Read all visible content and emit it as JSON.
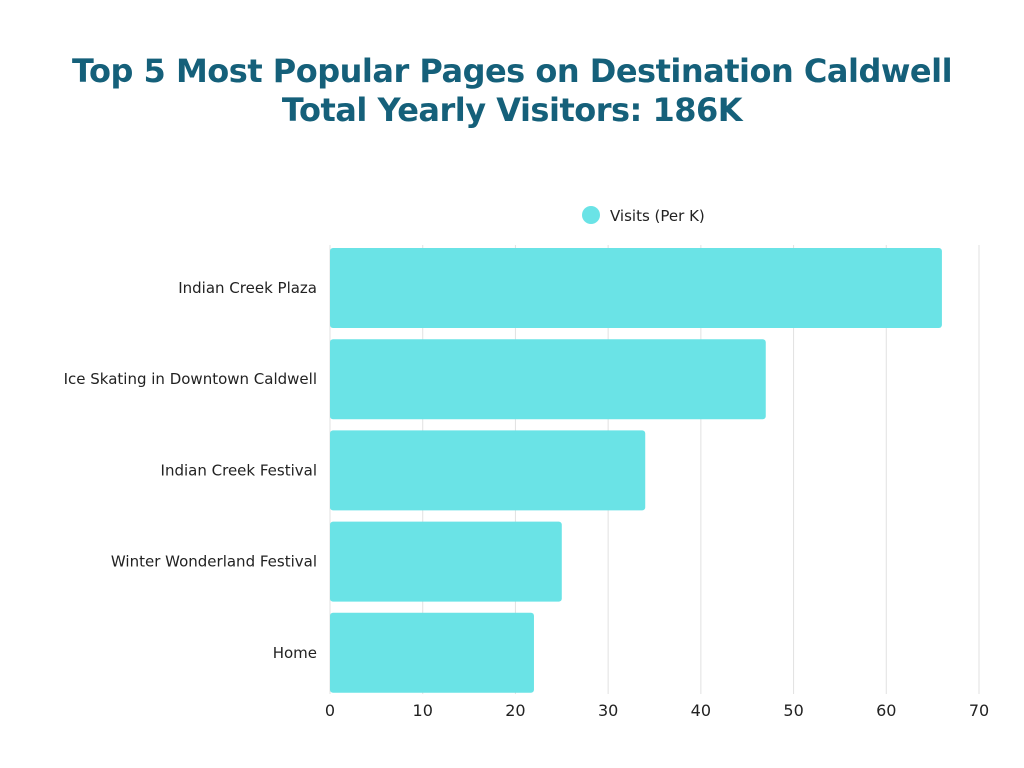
{
  "chart_data": {
    "type": "bar",
    "orientation": "horizontal",
    "title": "Top 5 Most Popular Pages on Destination Caldwell",
    "subtitle": "Total Yearly Visitors: 186K",
    "categories": [
      "Indian Creek Plaza",
      "Ice Skating in Downtown Caldwell",
      "Indian Creek Festival",
      "Winter Wonderland Festival",
      "Home"
    ],
    "series": [
      {
        "name": "Visits (Per K)",
        "values": [
          66,
          47,
          34,
          25,
          22
        ],
        "color": "#6ae3e6"
      }
    ],
    "xlim": [
      0,
      70
    ],
    "xticks": [
      0,
      10,
      20,
      30,
      40,
      50,
      60,
      70
    ],
    "grid": "vertical",
    "legend": "top-center",
    "title_color": "#15607a"
  }
}
